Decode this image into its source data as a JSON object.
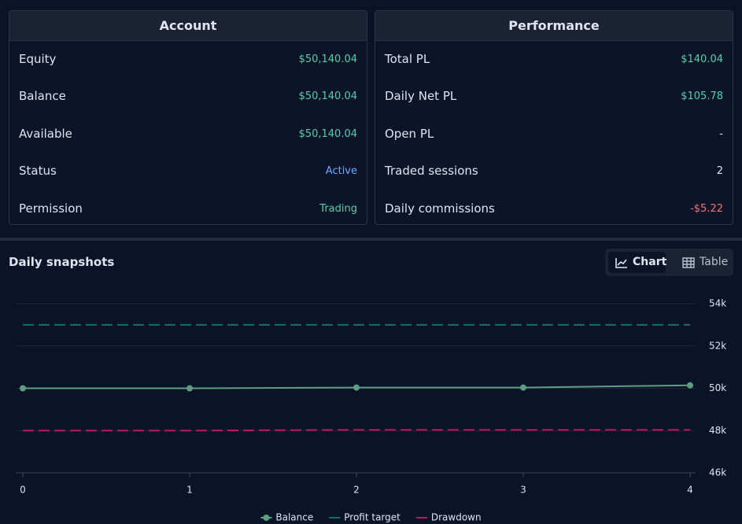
{
  "account": {
    "title": "Account",
    "rows": [
      [
        "Equity",
        "$50,140.04"
      ],
      [
        "Balance",
        "$50,140.04"
      ],
      [
        "Available",
        "$50,140.04"
      ],
      [
        "Status",
        "Active"
      ],
      [
        "Permission",
        "Trading"
      ]
    ]
  },
  "performance": {
    "title": "Performance",
    "rows": [
      [
        "Total PL",
        "$140.04"
      ],
      [
        "Daily Net PL",
        "$105.78"
      ],
      [
        "Open PL",
        "-"
      ],
      [
        "Traded sessions",
        "2"
      ],
      [
        "Daily commissions",
        "-$5.22"
      ]
    ]
  },
  "snapshots": {
    "title": "Daily snapshots",
    "toggle": [
      "Chart",
      "Table"
    ]
  },
  "chart_data": {
    "type": "line",
    "x": [
      0,
      1,
      2,
      3,
      4
    ],
    "xlim": [
      0,
      4
    ],
    "xticks": [
      0,
      1,
      2,
      3,
      4
    ],
    "ylim": [
      46000,
      54000
    ],
    "yticks": [
      {
        "value": 46000,
        "label": "46k"
      },
      {
        "value": 48000,
        "label": "48k"
      },
      {
        "value": 50000,
        "label": "50k"
      },
      {
        "value": 52000,
        "label": "52k"
      },
      {
        "value": 54000,
        "label": "54k"
      }
    ],
    "grid": true,
    "legend": "bottom",
    "series": [
      {
        "name": "Balance",
        "color": "#5e9e80",
        "values": [
          50000,
          50000,
          50034.26,
          50034.26,
          50140.04
        ],
        "markers": true
      },
      {
        "name": "Profit target",
        "color": "#11706a",
        "values": [
          53000,
          53000,
          53000,
          53000,
          53000
        ],
        "dashed": true
      },
      {
        "name": "Drawdown",
        "color": "#c2185b",
        "values": [
          48000,
          48000,
          48034.26,
          48034.26,
          48034.26
        ],
        "dashed": true
      }
    ]
  }
}
